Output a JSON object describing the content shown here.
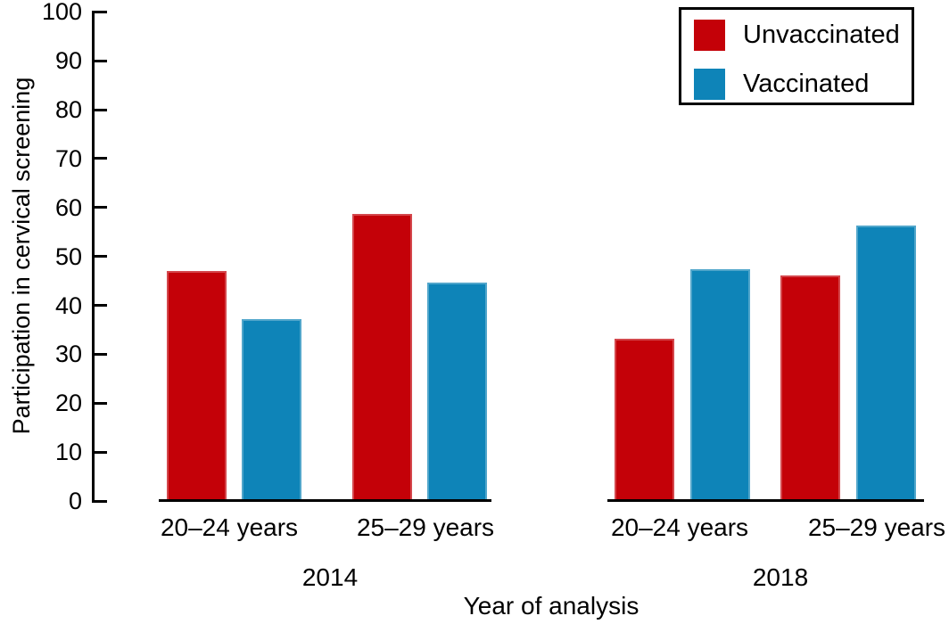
{
  "chart_data": {
    "type": "bar",
    "title": "",
    "xlabel": "Year of analysis",
    "ylabel": "Participation in cervical screening",
    "ylim": [
      0,
      100
    ],
    "yticks": [
      0,
      10,
      20,
      30,
      40,
      50,
      60,
      70,
      80,
      90,
      100
    ],
    "grid": false,
    "legend_position": "top-right",
    "groups": [
      {
        "year": "2014",
        "categories": [
          "20–24 years",
          "25–29 years"
        ]
      },
      {
        "year": "2018",
        "categories": [
          "20–24 years",
          "25–29 years"
        ]
      }
    ],
    "series": [
      {
        "name": "Unvaccinated",
        "color": "#c40108",
        "values": [
          [
            47.1,
            58.6
          ],
          [
            33.2,
            46.1
          ]
        ]
      },
      {
        "name": "Vaccinated",
        "color": "#0e84b8",
        "values": [
          [
            37.2,
            44.6
          ],
          [
            47.4,
            56.4
          ]
        ]
      }
    ]
  },
  "colors": {
    "unvaccinated": "#c40108",
    "vaccinated": "#0e84b8",
    "axis": "#000000",
    "background": "#ffffff"
  }
}
